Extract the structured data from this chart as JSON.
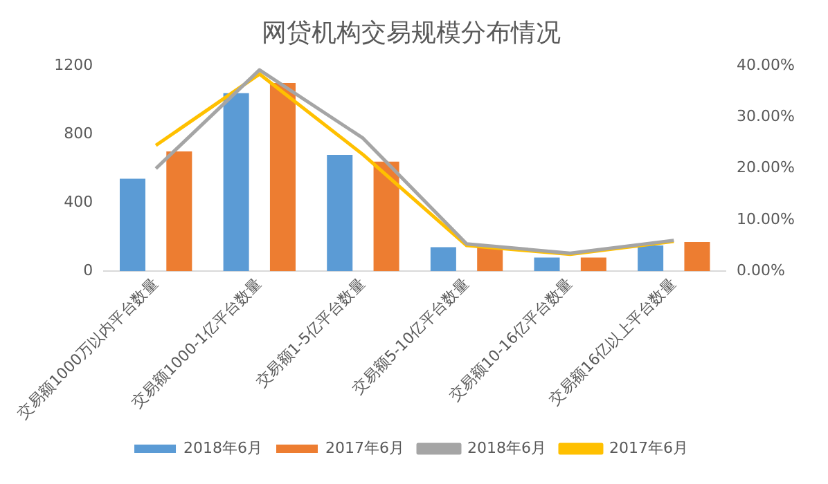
{
  "chart_data": {
    "type": "bar",
    "title": "网贷机构交易规模分布情况",
    "categories": [
      "交易额1000万以内平台数量",
      "交易额1000-1亿平台数量",
      "交易额1-5亿平台数量",
      "交易额5-10亿平台数量",
      "交易额10-16亿平台数量",
      "交易额16亿以上平台数量"
    ],
    "series": [
      {
        "name": "2018年6月",
        "color": "#5b9bd5",
        "values": [
          540,
          1040,
          680,
          140,
          80,
          150
        ]
      },
      {
        "name": "2017年6月",
        "color": "#ed7d31",
        "values": [
          700,
          1100,
          640,
          140,
          80,
          170
        ]
      },
      {
        "name": "2018年6月",
        "type": "line",
        "axis": "y2",
        "color": "#a5a5a5",
        "values": [
          20,
          39.2,
          25.9,
          5.3,
          3.5,
          6
        ]
      },
      {
        "name": "2017年6月",
        "type": "line",
        "axis": "y2",
        "color": "#ffc000",
        "values": [
          24.5,
          38.4,
          22.7,
          5,
          3.3,
          5.8
        ]
      }
    ],
    "ylim": [
      0,
      1200
    ],
    "yticks": [
      0,
      400,
      800,
      1200
    ],
    "y2lim": [
      0,
      40
    ],
    "y2ticks": [
      {
        "value": 0,
        "label": "0.00%"
      },
      {
        "value": 10,
        "label": "10.00%"
      },
      {
        "value": 20,
        "label": "20.00%"
      },
      {
        "value": 30,
        "label": "30.00%"
      },
      {
        "value": 40,
        "label": "40.00%"
      }
    ],
    "grid": false,
    "legend": "bottom",
    "marker": "none"
  }
}
